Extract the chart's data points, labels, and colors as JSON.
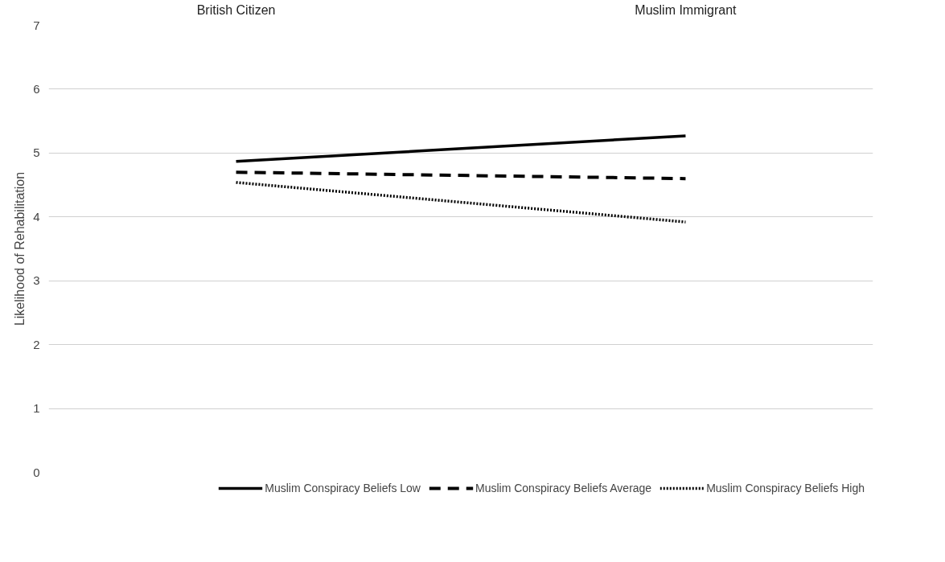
{
  "chart_data": {
    "type": "line",
    "ylabel": "Likelihood of Rehabilitation",
    "categories": [
      "British Citizen",
      "Muslim Immigrant"
    ],
    "series": [
      {
        "name": "Muslim Conspiracy Beliefs Low",
        "color": "#000000",
        "values": [
          4.87,
          5.27
        ],
        "line_style": "solid"
      },
      {
        "name": "Muslim Conspiracy Beliefs Average",
        "color": "#000000",
        "values": [
          4.7,
          4.6
        ],
        "line_style": "dashed"
      },
      {
        "name": "Muslim Conspiracy Beliefs High",
        "color": "#000000",
        "values": [
          4.54,
          3.92
        ],
        "line_style": "dotted"
      }
    ],
    "ylim": [
      0,
      7
    ],
    "yticks": [
      0,
      1,
      2,
      3,
      4,
      5,
      6,
      7
    ],
    "grid": "y",
    "legend": "bottom",
    "marker": "none"
  }
}
